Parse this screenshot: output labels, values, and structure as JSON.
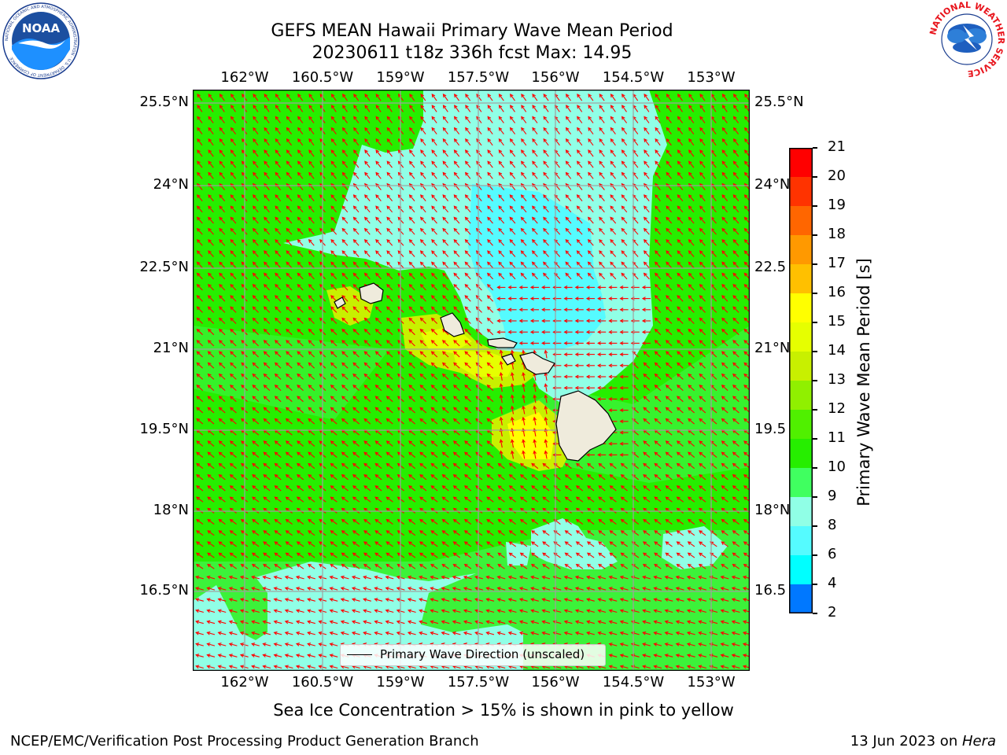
{
  "header": {
    "title_line1": "GEFS MEAN Hawaii Primary Wave Mean Period",
    "title_line2": "20230611 t18z 336h fcst   Max: 14.95"
  },
  "logos": {
    "noaa_text": "NOAA",
    "noaa_ring": "NATIONAL OCEANIC AND ATMOSPHERIC ADMINISTRATION · U.S. DEPARTMENT OF COMMERCE",
    "nws_ring": "NATIONAL WEATHER SERVICE"
  },
  "map": {
    "lon_labels": [
      "162°W",
      "160.5°W",
      "159°W",
      "157.5°W",
      "156°W",
      "154.5°W",
      "153°W"
    ],
    "lat_labels_left": [
      "25.5°N",
      "24°N",
      "22.5°N",
      "21°N",
      "19.5°N",
      "18°N",
      "16.5°N"
    ],
    "lat_labels_right": [
      "25.5°N",
      "24°N",
      "22.5",
      "21°N",
      "19.5",
      "18°N",
      "16.5"
    ],
    "legend_label": "Primary Wave Direction (unscaled)",
    "colors": {
      "land": "#efebdc",
      "arrow": "#ff0000",
      "grid": "#a0a0a0"
    }
  },
  "colorbar": {
    "label": "Primary Wave Mean Period [s]",
    "ticks": [
      "21",
      "20",
      "19",
      "18",
      "17",
      "16",
      "15",
      "14",
      "13",
      "12",
      "11",
      "10",
      "9",
      "8",
      "6",
      "4",
      "2"
    ],
    "colors": [
      "#ff0000",
      "#ff3300",
      "#ff6600",
      "#ff9900",
      "#ffc000",
      "#ffff00",
      "#e6ff00",
      "#c8f000",
      "#90f000",
      "#50f000",
      "#26ee00",
      "#40ff60",
      "#90ffe6",
      "#55fbff",
      "#00ffff",
      "#0078ff",
      "#0000ff"
    ]
  },
  "annotations": {
    "sea_ice_note": "Sea Ice Concentration > 15% is shown in pink to yellow"
  },
  "footer": {
    "left": "NCEP/EMC/Verification Post Processing Product Generation Branch",
    "date": "13 Jun 2023 on ",
    "machine": "Hera"
  }
}
